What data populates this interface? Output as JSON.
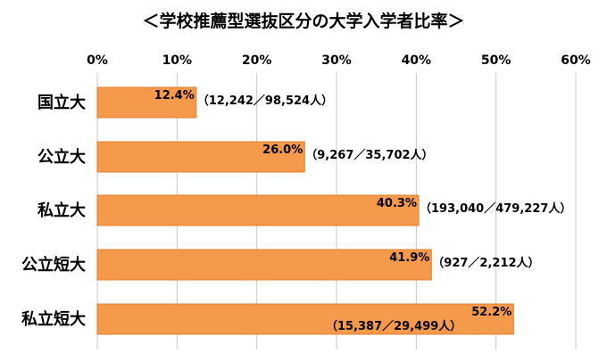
{
  "chart_data": {
    "type": "bar",
    "orientation": "horizontal",
    "title": "＜学校推薦型選抜区分の大学入学者比率＞",
    "categories": [
      "国立大",
      "公立大",
      "私立大",
      "公立短大",
      "私立短大"
    ],
    "values": [
      12.4,
      26.0,
      40.3,
      41.9,
      52.2
    ],
    "value_labels": [
      "12.4%",
      "26.0%",
      "40.3%",
      "41.9%",
      "52.2%"
    ],
    "detail_labels": [
      "（12,242／98,524人）",
      "（9,267／35,702人）",
      "（193,040／479,227人）",
      "（927／2,212人）",
      "（15,387／29,499人）"
    ],
    "x_ticks": [
      "0%",
      "10%",
      "20%",
      "30%",
      "40%",
      "50%",
      "60%"
    ],
    "xlim": [
      0,
      60
    ],
    "tick_position": "top",
    "grid": true,
    "bar_color": "#F5994B",
    "bar_edge_color": "#E07F2E",
    "grid_color": "#C8C8C8"
  }
}
